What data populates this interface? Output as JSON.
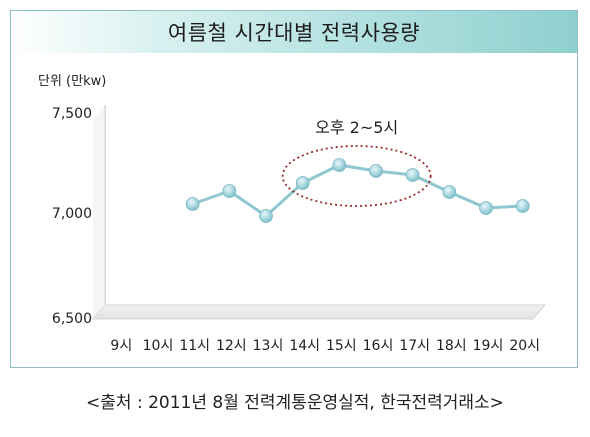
{
  "chart_data": {
    "type": "line",
    "title": "여름철 시간대별 전력사용량",
    "unit_label": "단위 (만kw)",
    "categories": [
      "9시",
      "10시",
      "11시",
      "12시",
      "13시",
      "14시",
      "15시",
      "16시",
      "17시",
      "18시",
      "19시",
      "20시"
    ],
    "series": [
      {
        "values": [
          null,
          null,
          7005,
          7070,
          6945,
          7110,
          7200,
          7170,
          7150,
          7065,
          6985,
          6995
        ]
      }
    ],
    "y_ticks": [
      "7,500",
      "7,000",
      "6,500"
    ],
    "ylim": [
      6500,
      7500
    ],
    "annotation": "오후 2~5시",
    "highlight_range": [
      "14시",
      "17시"
    ],
    "colors": {
      "line": "#8fc7cf",
      "marker": "#a9dbe4",
      "ellipse": "#9a2a2a",
      "title_bg": "#8fd0cf"
    },
    "grid": false
  },
  "source": "<출처 : 2011년 8월 전력계통운영실적, 한국전력거래소>"
}
